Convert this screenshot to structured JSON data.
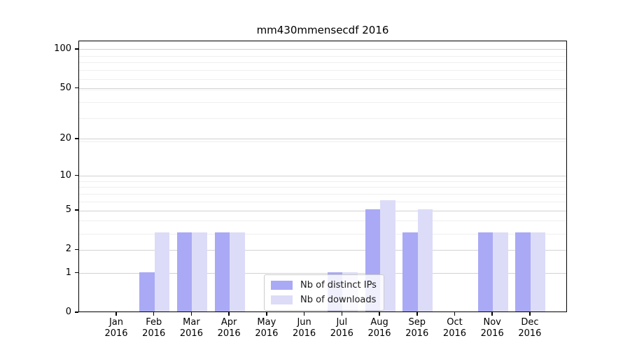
{
  "chart_data": {
    "type": "bar",
    "title": "mm430mmensecdf 2016",
    "categories": [
      "Jan",
      "Feb",
      "Mar",
      "Apr",
      "May",
      "Jun",
      "Jul",
      "Aug",
      "Sep",
      "Oct",
      "Nov",
      "Dec"
    ],
    "year_label": "2016",
    "series": [
      {
        "name": "Nb of distinct IPs",
        "color": "#a9a9f5",
        "values": [
          0,
          1,
          3,
          3,
          0,
          0,
          1,
          5,
          3,
          0,
          3,
          3
        ]
      },
      {
        "name": "Nb of downloads",
        "color": "#dcdcf8",
        "values": [
          0,
          3,
          3,
          3,
          0,
          0,
          1,
          6,
          5,
          0,
          3,
          3
        ]
      }
    ],
    "yscale": "log1p",
    "ylim": [
      0,
      116
    ],
    "y_major_ticks": [
      0,
      1,
      2,
      5,
      10,
      20,
      50,
      100
    ],
    "y_minor_gridlines": [
      3,
      4,
      6,
      7,
      8,
      9,
      19,
      29,
      39,
      49,
      59,
      69,
      79,
      89
    ],
    "grid": "both",
    "legend_position": "lower-center-inside",
    "colors": {
      "axis": "#000000",
      "major_grid": "#d2d2d2",
      "minor_grid": "#efefef",
      "background": "#ffffff"
    }
  }
}
